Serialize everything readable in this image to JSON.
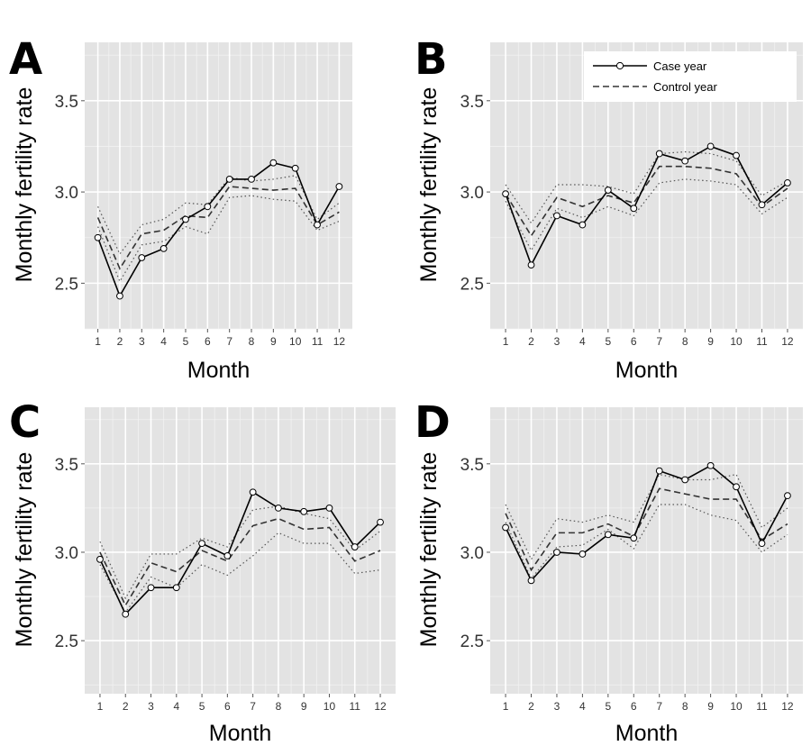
{
  "chart_data": [
    {
      "type": "line",
      "panel_label": "A",
      "xlabel": "Month",
      "ylabel": "Monthly fertility rate",
      "x": [
        1,
        2,
        3,
        4,
        5,
        6,
        7,
        8,
        9,
        10,
        11,
        12
      ],
      "ylim": [
        2.25,
        3.82
      ],
      "yticks": [
        2.5,
        3.0,
        3.5
      ],
      "grid": true,
      "show_legend": false,
      "series": [
        {
          "name": "Case year",
          "style": "solid-markers",
          "values": [
            2.75,
            2.43,
            2.64,
            2.69,
            2.85,
            2.92,
            3.07,
            3.07,
            3.16,
            3.13,
            2.82,
            3.03
          ]
        },
        {
          "name": "Control year",
          "style": "dashed",
          "values": [
            2.86,
            2.58,
            2.77,
            2.79,
            2.87,
            2.86,
            3.03,
            3.02,
            3.01,
            3.02,
            2.82,
            2.89
          ]
        },
        {
          "style": "dotted",
          "values": [
            2.92,
            2.66,
            2.82,
            2.85,
            2.94,
            2.93,
            3.08,
            3.06,
            3.07,
            3.09,
            2.85,
            2.94
          ]
        },
        {
          "style": "dotted",
          "values": [
            2.81,
            2.51,
            2.71,
            2.73,
            2.81,
            2.77,
            2.97,
            2.98,
            2.96,
            2.95,
            2.79,
            2.84
          ]
        }
      ]
    },
    {
      "type": "line",
      "panel_label": "B",
      "xlabel": "Month",
      "ylabel": "Monthly fertility rate",
      "x": [
        1,
        2,
        3,
        4,
        5,
        6,
        7,
        8,
        9,
        10,
        11,
        12
      ],
      "ylim": [
        2.25,
        3.82
      ],
      "yticks": [
        2.5,
        3.0,
        3.5
      ],
      "grid": true,
      "show_legend": true,
      "legend": [
        "Case year",
        "Control year"
      ],
      "legend_position": "top-right",
      "series": [
        {
          "name": "Case year",
          "style": "solid-markers",
          "values": [
            2.99,
            2.6,
            2.87,
            2.82,
            3.01,
            2.91,
            3.21,
            3.17,
            3.25,
            3.2,
            2.93,
            3.05
          ]
        },
        {
          "name": "Control year",
          "style": "dashed",
          "values": [
            2.99,
            2.76,
            2.97,
            2.92,
            2.98,
            2.94,
            3.14,
            3.14,
            3.13,
            3.1,
            2.92,
            3.02
          ]
        },
        {
          "style": "dotted",
          "values": [
            3.04,
            2.83,
            3.04,
            3.04,
            3.03,
            2.99,
            3.21,
            3.22,
            3.21,
            3.17,
            2.98,
            3.06
          ]
        },
        {
          "style": "dotted",
          "values": [
            2.95,
            2.68,
            2.91,
            2.86,
            2.92,
            2.87,
            3.05,
            3.07,
            3.06,
            3.04,
            2.88,
            2.97
          ]
        }
      ]
    },
    {
      "type": "line",
      "panel_label": "C",
      "xlabel": "Month",
      "ylabel": "Monthly fertility rate",
      "x": [
        1,
        2,
        3,
        4,
        5,
        6,
        7,
        8,
        9,
        10,
        11,
        12
      ],
      "ylim": [
        2.2,
        3.82
      ],
      "yticks": [
        2.5,
        3.0,
        3.5
      ],
      "grid": true,
      "show_legend": false,
      "series": [
        {
          "name": "Case year",
          "style": "solid-markers",
          "values": [
            2.96,
            2.65,
            2.8,
            2.8,
            3.05,
            2.98,
            3.34,
            3.25,
            3.23,
            3.25,
            3.03,
            3.17
          ]
        },
        {
          "name": "Control year",
          "style": "dashed",
          "values": [
            3.0,
            2.7,
            2.94,
            2.89,
            3.01,
            2.95,
            3.15,
            3.19,
            3.13,
            3.14,
            2.95,
            3.01
          ]
        },
        {
          "style": "dotted",
          "values": [
            3.06,
            2.74,
            2.99,
            2.99,
            3.08,
            3.03,
            3.24,
            3.26,
            3.22,
            3.19,
            3.01,
            3.12
          ]
        },
        {
          "style": "dotted",
          "values": [
            2.93,
            2.66,
            2.86,
            2.8,
            2.93,
            2.87,
            2.98,
            3.11,
            3.05,
            3.05,
            2.88,
            2.9
          ]
        }
      ]
    },
    {
      "type": "line",
      "panel_label": "D",
      "xlabel": "Month",
      "ylabel": "Monthly fertility rate",
      "x": [
        1,
        2,
        3,
        4,
        5,
        6,
        7,
        8,
        9,
        10,
        11,
        12
      ],
      "ylim": [
        2.2,
        3.82
      ],
      "yticks": [
        2.5,
        3.0,
        3.5
      ],
      "grid": true,
      "show_legend": false,
      "series": [
        {
          "name": "Case year",
          "style": "solid-markers",
          "values": [
            3.14,
            2.84,
            3.0,
            2.99,
            3.1,
            3.08,
            3.46,
            3.41,
            3.49,
            3.37,
            3.05,
            3.32
          ]
        },
        {
          "name": "Control year",
          "style": "dashed",
          "values": [
            3.22,
            2.9,
            3.11,
            3.11,
            3.16,
            3.09,
            3.36,
            3.33,
            3.3,
            3.3,
            3.07,
            3.16
          ]
        },
        {
          "style": "dotted",
          "values": [
            3.27,
            2.96,
            3.19,
            3.17,
            3.21,
            3.17,
            3.44,
            3.41,
            3.41,
            3.44,
            3.14,
            3.25
          ]
        },
        {
          "style": "dotted",
          "values": [
            3.17,
            2.85,
            3.03,
            3.04,
            3.13,
            3.02,
            3.27,
            3.27,
            3.21,
            3.18,
            3.0,
            3.1
          ]
        }
      ]
    }
  ]
}
